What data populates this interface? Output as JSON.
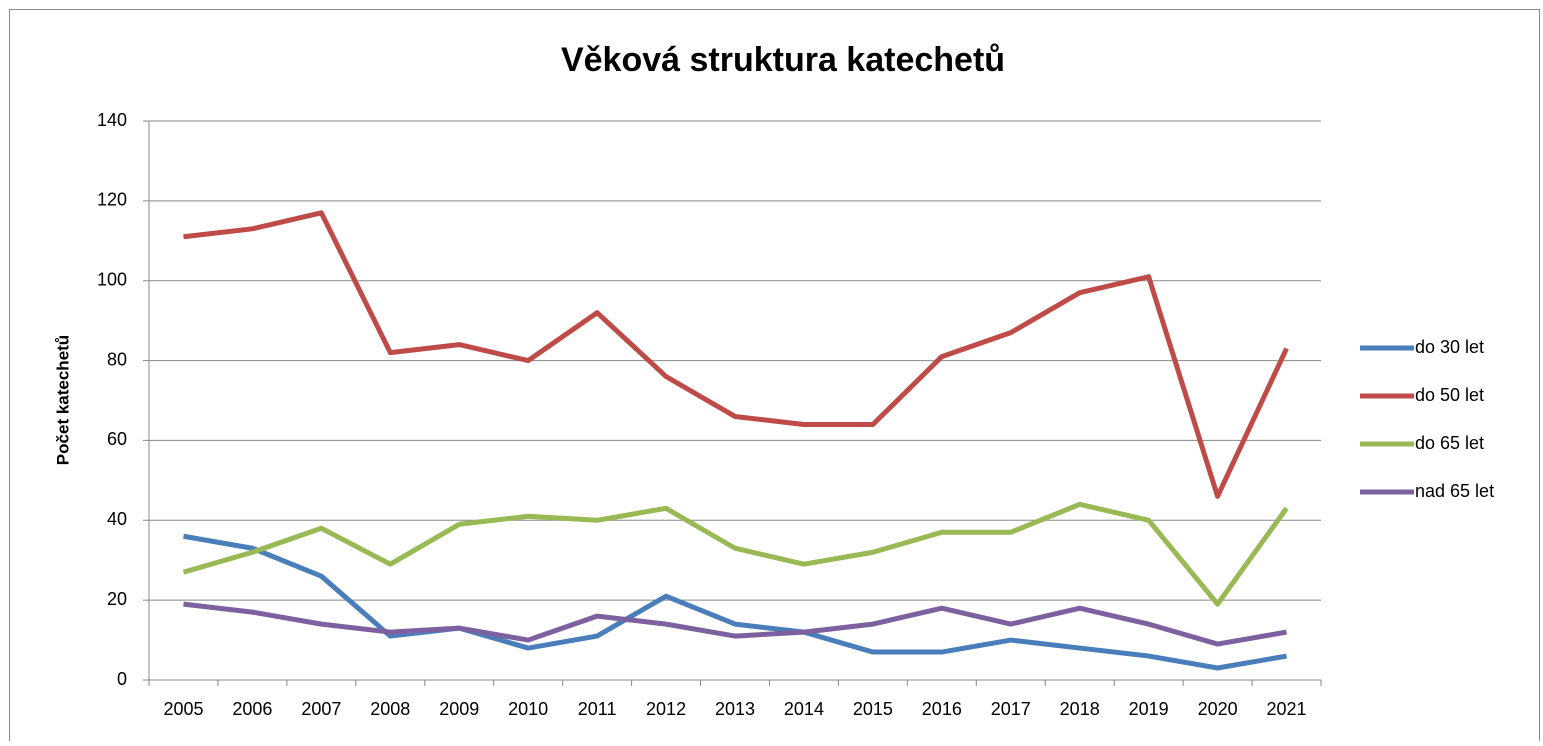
{
  "chart_data": {
    "type": "line",
    "title": "Věková struktura katechetů",
    "y_label": "Počet katechetů",
    "categories": [
      "2005",
      "2006",
      "2007",
      "2008",
      "2009",
      "2010",
      "2011",
      "2012",
      "2013",
      "2014",
      "2015",
      "2016",
      "2017",
      "2018",
      "2019",
      "2020",
      "2021"
    ],
    "series": [
      {
        "name": "do 30 let",
        "color": "#4a7ebb",
        "values": [
          36,
          33,
          26,
          11,
          13,
          8,
          11,
          21,
          14,
          12,
          7,
          7,
          10,
          8,
          6,
          3,
          6
        ]
      },
      {
        "name": "do 50 let",
        "color": "#be4b48",
        "values": [
          111,
          113,
          117,
          82,
          84,
          80,
          92,
          76,
          66,
          64,
          64,
          81,
          87,
          97,
          101,
          46,
          83
        ]
      },
      {
        "name": "do 65 let",
        "color": "#98b954",
        "values": [
          27,
          32,
          38,
          29,
          39,
          41,
          40,
          43,
          33,
          29,
          32,
          37,
          37,
          44,
          40,
          19,
          43
        ]
      },
      {
        "name": "nad 65 let",
        "color": "#7d60a0",
        "values": [
          19,
          17,
          14,
          12,
          13,
          10,
          16,
          14,
          11,
          12,
          14,
          18,
          14,
          18,
          14,
          9,
          12
        ]
      }
    ],
    "ylim": [
      0,
      140
    ],
    "yticks": [
      0,
      20,
      40,
      60,
      80,
      100,
      120,
      140
    ],
    "grid": true,
    "legend": "right"
  }
}
